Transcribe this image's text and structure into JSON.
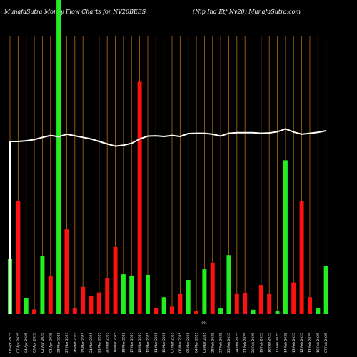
{
  "header": {
    "left": "MunafaSutra  Money Flow  Charts for NV20BEES",
    "right": "(Nip Ind Etf Nv20) MunafaSutra.com"
  },
  "chart_data": {
    "type": "bar",
    "title": "MunafaSutra  Money Flow  Charts for NV20BEES",
    "subtitle": "(Nip Ind Etf Nv20) MunafaSutra.com",
    "colors": {
      "up": "#22ee22",
      "down": "#ff1111",
      "grid": "#b8690f",
      "line": "#ffffff",
      "background": "#000000"
    },
    "bar_scale": [
      0,
      100
    ],
    "price_scale": [
      0,
      100
    ],
    "bars": [
      {
        "value": 17.5,
        "dir": "up"
      },
      {
        "value": 36.0,
        "dir": "down"
      },
      {
        "value": 5.0,
        "dir": "up"
      },
      {
        "value": 1.5,
        "dir": "down"
      },
      {
        "value": 18.5,
        "dir": "up"
      },
      {
        "value": 12.3,
        "dir": "down"
      },
      {
        "value": 100.0,
        "dir": "up"
      },
      {
        "value": 27.0,
        "dir": "down"
      },
      {
        "value": 2.0,
        "dir": "down"
      },
      {
        "value": 8.7,
        "dir": "down"
      },
      {
        "value": 5.9,
        "dir": "down"
      },
      {
        "value": 6.9,
        "dir": "down"
      },
      {
        "value": 11.4,
        "dir": "down"
      },
      {
        "value": 21.4,
        "dir": "down"
      },
      {
        "value": 12.7,
        "dir": "up"
      },
      {
        "value": 12.3,
        "dir": "up"
      },
      {
        "value": 74.0,
        "dir": "down"
      },
      {
        "value": 12.5,
        "dir": "up"
      },
      {
        "value": 2.0,
        "dir": "down"
      },
      {
        "value": 5.4,
        "dir": "up"
      },
      {
        "value": 2.4,
        "dir": "down"
      },
      {
        "value": 6.4,
        "dir": "down"
      },
      {
        "value": 10.9,
        "dir": "up"
      },
      {
        "value": 0.9,
        "dir": "down"
      },
      {
        "value": 14.3,
        "dir": "up"
      },
      {
        "value": 16.4,
        "dir": "down"
      },
      {
        "value": 1.8,
        "dir": "up"
      },
      {
        "value": 18.8,
        "dir": "up"
      },
      {
        "value": 6.4,
        "dir": "down"
      },
      {
        "value": 6.8,
        "dir": "down"
      },
      {
        "value": 1.4,
        "dir": "up"
      },
      {
        "value": 9.3,
        "dir": "down"
      },
      {
        "value": 6.4,
        "dir": "down"
      },
      {
        "value": 0.9,
        "dir": "up"
      },
      {
        "value": 49.0,
        "dir": "up"
      },
      {
        "value": 10.1,
        "dir": "down"
      },
      {
        "value": 36.0,
        "dir": "down"
      },
      {
        "value": 5.4,
        "dir": "down"
      },
      {
        "value": 1.8,
        "dir": "up"
      },
      {
        "value": 15.3,
        "dir": "up"
      }
    ],
    "price_line": [
      55.0,
      55.0,
      55.2,
      55.6,
      56.3,
      56.9,
      56.5,
      57.3,
      56.8,
      56.3,
      55.8,
      55.0,
      54.2,
      53.5,
      53.8,
      54.4,
      55.8,
      56.7,
      56.8,
      56.6,
      56.9,
      56.6,
      57.5,
      57.6,
      57.6,
      57.3,
      56.7,
      57.6,
      57.8,
      57.8,
      57.8,
      57.6,
      57.7,
      58.1,
      59.0,
      58.0,
      57.3,
      57.6,
      57.9,
      58.4
    ],
    "tick_labels": [
      "08 Apr 2025",
      "07 Apr 2025",
      "04 Apr 2025",
      "03 Apr 2025",
      "02 Apr 2025",
      "01 Apr 2025",
      "28 Mar 2025",
      "27 Mar 2025",
      "26 Mar 2025",
      "25 Mar 2025",
      "24 Mar 2025",
      "21 Mar 2025",
      "20 Mar 2025",
      "19 Mar 2025",
      "18 Mar 2025",
      "17 Mar 2025",
      "13 Mar 2025",
      "12 Mar 2025",
      "11 Mar 2025",
      "10 Mar 2025",
      "07 Mar 2025",
      "06 Mar 2025",
      "05 Mar 2025",
      "04 Mar 2025",
      "03 Mar 2025",
      "28 Feb 2025",
      "27 Feb 2025",
      "25 Feb 2025",
      "24 Feb 2025",
      "21 Feb 2025",
      "20 Feb 2025",
      "19 Feb 2025",
      "18 Feb 2025",
      "17 Feb 2025",
      "14 Feb 2025",
      "13 Feb 2025",
      "12 Feb 2025",
      "11 Feb 2025",
      "10 Feb 2025",
      "07 Feb 2025"
    ],
    "baseline_marker": "0%"
  }
}
